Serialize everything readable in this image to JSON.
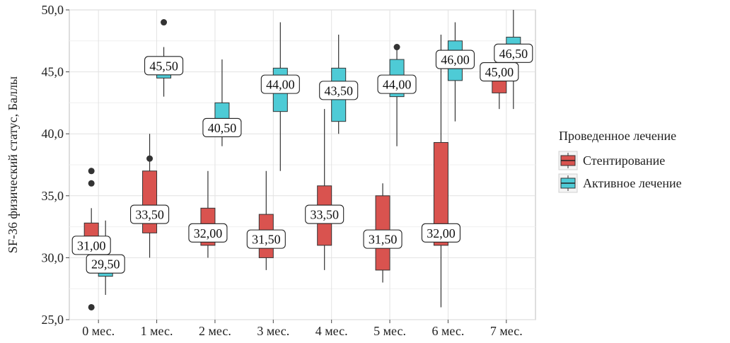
{
  "chart_data": {
    "type": "boxplot",
    "ylabel": "SF-36 физический статус, Баллы",
    "xlabel": "",
    "ylim": [
      25,
      50
    ],
    "yticks": [
      "25,0",
      "30,0",
      "35,0",
      "40,0",
      "45,0",
      "50,0"
    ],
    "ytick_values": [
      25,
      30,
      35,
      40,
      45,
      50
    ],
    "categories": [
      "0 мес.",
      "1 мес.",
      "2 мес.",
      "3 мес.",
      "4 мес.",
      "5 мес.",
      "6 мес.",
      "7 мес."
    ],
    "grid": true,
    "legend": {
      "title": "Проведенное лечение",
      "position": "right"
    },
    "series": [
      {
        "name": "Стентирование",
        "color": "#d9534f",
        "boxes": [
          {
            "category": "0 мес.",
            "min": 30,
            "q1": 30.5,
            "median": 31.0,
            "q3": 32.8,
            "max": 34,
            "outliers": [
              37,
              36,
              26
            ],
            "label": "31,00"
          },
          {
            "category": "1 мес.",
            "min": 30,
            "q1": 32.0,
            "median": 33.5,
            "q3": 37.0,
            "max": 40,
            "outliers": [
              38
            ],
            "label": "33,50"
          },
          {
            "category": "2 мес.",
            "min": 30,
            "q1": 31.0,
            "median": 32.0,
            "q3": 34.0,
            "max": 37,
            "outliers": [],
            "label": "32,00"
          },
          {
            "category": "3 мес.",
            "min": 29,
            "q1": 30.0,
            "median": 31.5,
            "q3": 33.5,
            "max": 37,
            "outliers": [],
            "label": "31,50"
          },
          {
            "category": "4 мес.",
            "min": 29,
            "q1": 31.0,
            "median": 33.5,
            "q3": 35.8,
            "max": 42,
            "outliers": [],
            "label": "33,50"
          },
          {
            "category": "5 мес.",
            "min": 28,
            "q1": 29.0,
            "median": 31.5,
            "q3": 35.0,
            "max": 36,
            "outliers": [],
            "label": "31,50"
          },
          {
            "category": "6 мес.",
            "min": 26,
            "q1": 31.0,
            "median": 32.0,
            "q3": 39.3,
            "max": 48,
            "outliers": [],
            "label": "32,00"
          },
          {
            "category": "7 мес.",
            "min": 42,
            "q1": 43.3,
            "median": 45.0,
            "q3": 45.0,
            "max": 46,
            "outliers": [],
            "label": "45,00"
          }
        ]
      },
      {
        "name": "Активное лечение",
        "color": "#4ecbd6",
        "boxes": [
          {
            "category": "0 мес.",
            "min": 27,
            "q1": 28.5,
            "median": 29.5,
            "q3": 29.5,
            "max": 33,
            "outliers": [],
            "label": "29,50"
          },
          {
            "category": "1 мес.",
            "min": 43,
            "q1": 44.5,
            "median": 45.5,
            "q3": 45.5,
            "max": 47,
            "outliers": [
              49
            ],
            "label": "45,50"
          },
          {
            "category": "2 мес.",
            "min": 39,
            "q1": 40.0,
            "median": 40.5,
            "q3": 42.5,
            "max": 46,
            "outliers": [],
            "label": "40,50"
          },
          {
            "category": "3 мес.",
            "min": 37,
            "q1": 41.8,
            "median": 44.0,
            "q3": 45.3,
            "max": 49,
            "outliers": [],
            "label": "44,00"
          },
          {
            "category": "4 мес.",
            "min": 40,
            "q1": 41.0,
            "median": 43.5,
            "q3": 45.3,
            "max": 48,
            "outliers": [],
            "label": "43,50"
          },
          {
            "category": "5 мес.",
            "min": 39,
            "q1": 43.0,
            "median": 44.0,
            "q3": 46.0,
            "max": 47,
            "outliers": [
              47
            ],
            "label": "44,00"
          },
          {
            "category": "6 мес.",
            "min": 41,
            "q1": 44.3,
            "median": 46.0,
            "q3": 47.5,
            "max": 49,
            "outliers": [],
            "label": "46,00"
          },
          {
            "category": "7 мес.",
            "min": 42,
            "q1": 46.0,
            "median": 46.5,
            "q3": 47.8,
            "max": 50,
            "outliers": [],
            "label": "46,50"
          }
        ]
      }
    ]
  }
}
